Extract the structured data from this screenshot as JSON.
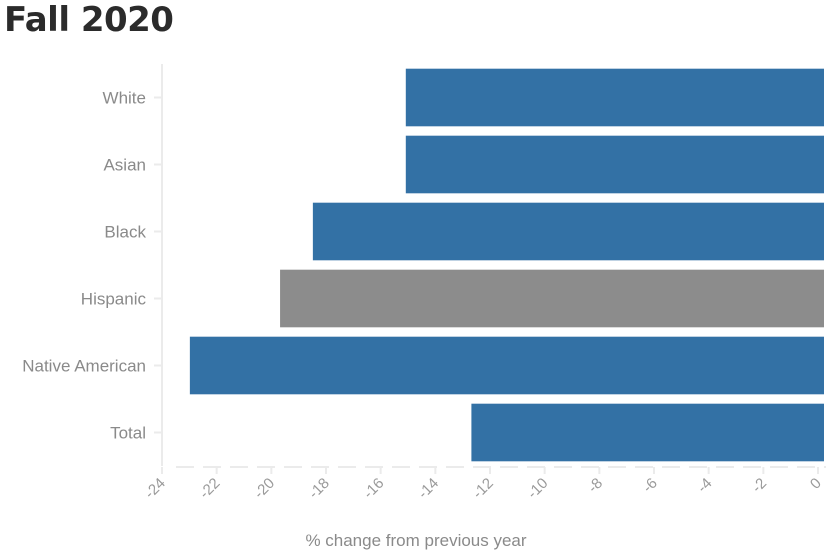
{
  "chart_data": {
    "type": "bar",
    "orientation": "horizontal",
    "title": "Fall 2020",
    "xlabel": "% change from previous year",
    "ylabel": "",
    "categories": [
      "White",
      "Asian",
      "Black",
      "Hispanic",
      "Native American",
      "Total"
    ],
    "values": [
      -15.3,
      -15.3,
      -18.7,
      -19.9,
      -23.2,
      -12.9
    ],
    "highlight_category": "Hispanic",
    "xlim": [
      -24,
      0
    ],
    "xticks": [
      -24,
      -22,
      -20,
      -18,
      -16,
      -14,
      -12,
      -10,
      -8,
      -6,
      -4,
      -2,
      0
    ],
    "grid": false,
    "legend": "none"
  },
  "colors": {
    "bar": "#3371a5",
    "highlight": "#8c8c8c",
    "axis": "#ebebeb",
    "label": "#8a8a8a",
    "title": "#2b2b2b"
  }
}
